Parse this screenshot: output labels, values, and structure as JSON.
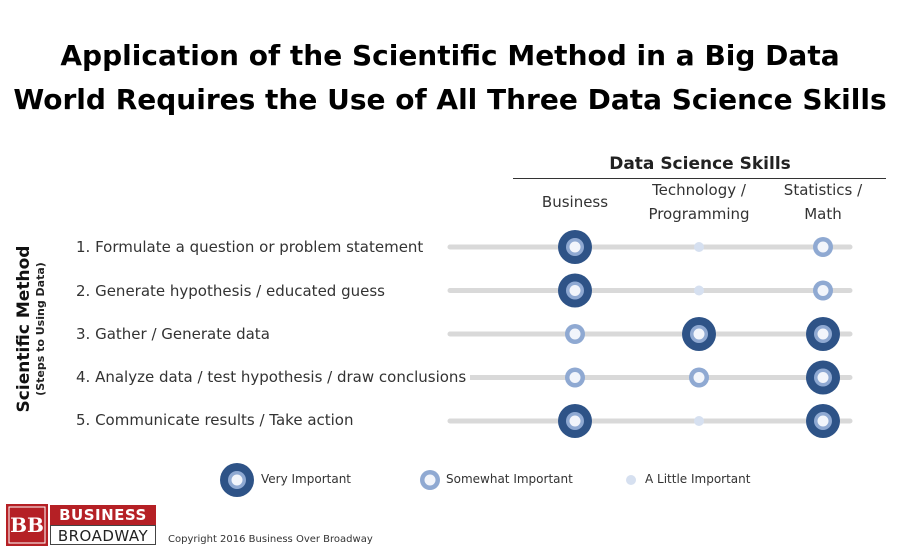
{
  "title_line1": "Application of the Scientific Method in a Big Data",
  "title_line2": "World Requires the Use of All Three Data Science Skills",
  "chart_data": {
    "type": "table",
    "title": "Application of the Scientific Method in a Big Data World Requires the Use of All Three Data Science Skills",
    "column_group_label": "Data Science Skills",
    "row_group_label": "Scientific Method",
    "row_group_sublabel": "(Steps to Using Data)",
    "columns": [
      {
        "line1": "Business",
        "line2": ""
      },
      {
        "line1": "Technology /",
        "line2": "Programming"
      },
      {
        "line1": "Statistics /",
        "line2": "Math"
      }
    ],
    "rows": [
      {
        "label": "1. Formulate a question or problem statement",
        "importance": [
          3,
          1,
          2
        ]
      },
      {
        "label": "2. Generate hypothesis / educated guess",
        "importance": [
          3,
          1,
          2
        ]
      },
      {
        "label": "3. Gather / Generate data",
        "importance": [
          2,
          3,
          3
        ]
      },
      {
        "label": "4. Analyze data / test hypothesis / draw conclusions",
        "importance": [
          2,
          2,
          3
        ]
      },
      {
        "label": "5. Communicate results / Take action",
        "importance": [
          3,
          1,
          3
        ]
      }
    ],
    "legend": [
      {
        "level": 3,
        "label": "Very Important"
      },
      {
        "level": 2,
        "label": "Somewhat Important"
      },
      {
        "level": 1,
        "label": "A Little Important"
      }
    ]
  },
  "colors": {
    "dark": "#2e5387",
    "medium": "#8fa9d2",
    "light": "#d6e0f0",
    "line": "#d9d9d9",
    "brand_red": "#b52025"
  },
  "logo": {
    "mark": "BB",
    "line1": "BUSINESS",
    "line2": "BROADWAY"
  },
  "copyright": "Copyright 2016 Business Over Broadway"
}
